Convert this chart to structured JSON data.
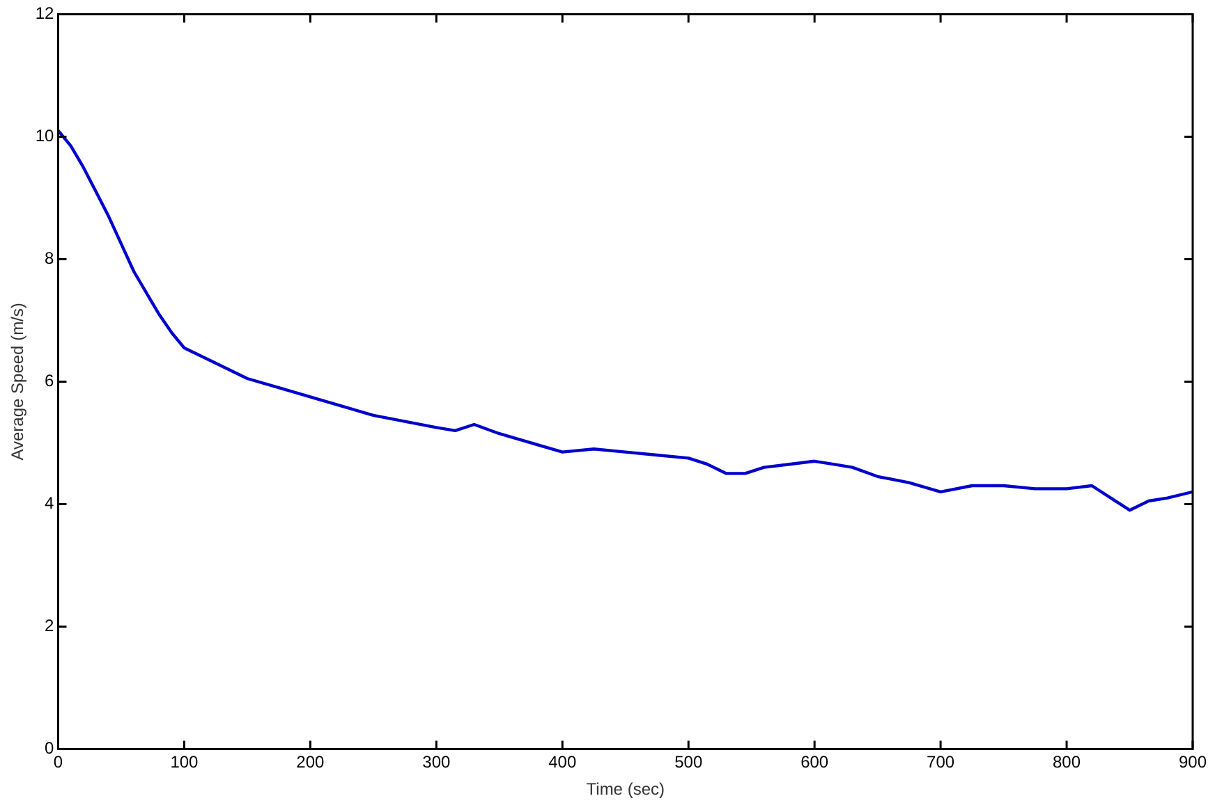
{
  "chart_data": {
    "type": "line",
    "xlabel": "Time (sec)",
    "ylabel": "Average Speed (m/s)",
    "x": [
      0,
      10,
      20,
      30,
      40,
      50,
      60,
      70,
      80,
      90,
      100,
      110,
      120,
      135,
      150,
      175,
      200,
      225,
      250,
      275,
      300,
      315,
      330,
      350,
      375,
      400,
      425,
      450,
      475,
      500,
      515,
      530,
      545,
      560,
      580,
      600,
      615,
      630,
      650,
      675,
      700,
      725,
      750,
      775,
      800,
      820,
      835,
      850,
      865,
      880,
      900
    ],
    "series": [
      {
        "color": "#0000cc",
        "values": [
          10.1,
          9.85,
          9.5,
          9.1,
          8.7,
          8.25,
          7.8,
          7.45,
          7.1,
          6.8,
          6.55,
          6.45,
          6.35,
          6.2,
          6.05,
          5.9,
          5.75,
          5.6,
          5.45,
          5.35,
          5.25,
          5.2,
          5.3,
          5.15,
          5.0,
          4.85,
          4.9,
          4.85,
          4.8,
          4.75,
          4.65,
          4.5,
          4.5,
          4.6,
          4.65,
          4.7,
          4.65,
          4.6,
          4.45,
          4.35,
          4.2,
          4.3,
          4.3,
          4.25,
          4.25,
          4.3,
          4.1,
          3.9,
          4.05,
          4.1,
          4.2
        ]
      }
    ],
    "xlim": [
      0,
      900
    ],
    "xticks": [
      0,
      100,
      200,
      300,
      400,
      500,
      600,
      700,
      800,
      900
    ],
    "ylim": [
      0,
      12
    ],
    "yticks": [
      0,
      2,
      4,
      6,
      8,
      10,
      12
    ],
    "grid": false,
    "legend": false,
    "marker": "none",
    "line_style": "solid"
  }
}
